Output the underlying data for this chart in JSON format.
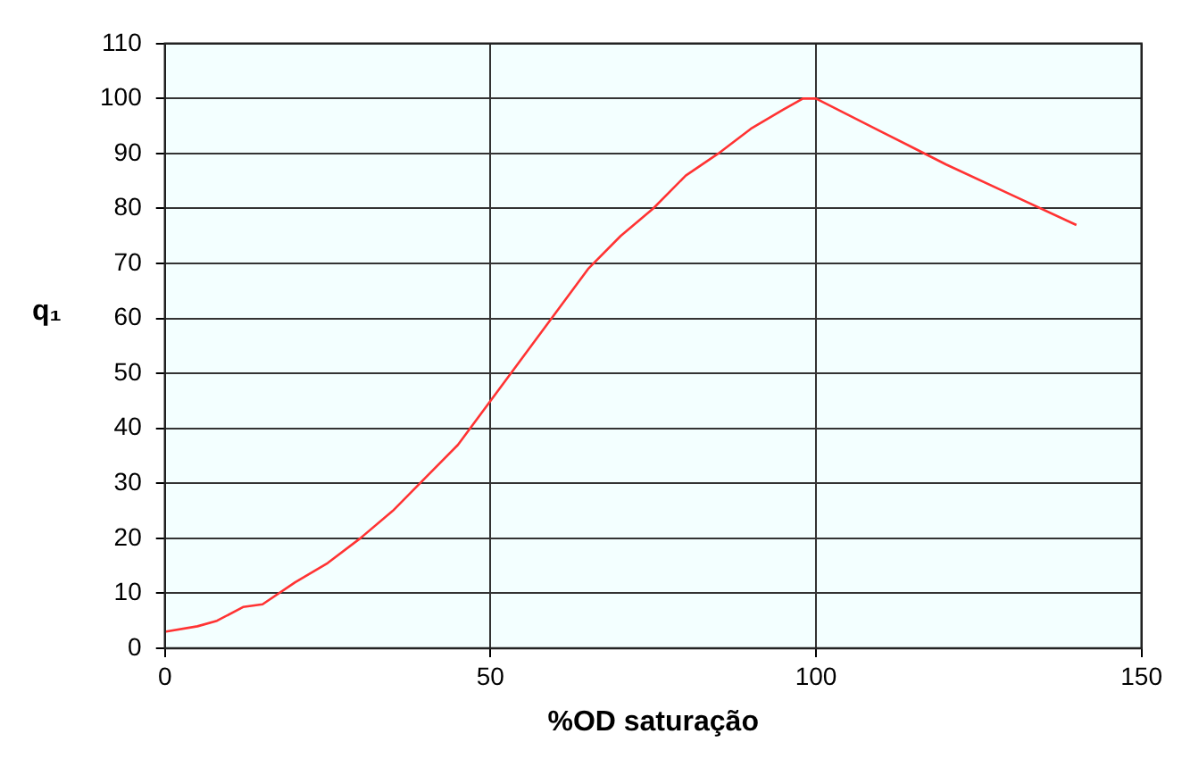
{
  "chart_data": {
    "type": "line",
    "xlabel": "%OD saturação",
    "ylabel": "q₁",
    "x": [
      0,
      5,
      8,
      12,
      15,
      20,
      25,
      30,
      35,
      40,
      45,
      50,
      55,
      60,
      65,
      70,
      75,
      80,
      85,
      90,
      95,
      98,
      100,
      105,
      110,
      115,
      120,
      130,
      140
    ],
    "series": [
      {
        "color": "#ff3333",
        "values": [
          3,
          4,
          5,
          7.5,
          8,
          12,
          15.5,
          20,
          25,
          31,
          37,
          45,
          53,
          61,
          69,
          75,
          80,
          86,
          90,
          94.5,
          98,
          100,
          100,
          97,
          94,
          91,
          88,
          82.5,
          77
        ]
      }
    ],
    "xlim": [
      0,
      150
    ],
    "xticks": [
      0,
      50,
      100,
      150
    ],
    "ylim": [
      0,
      110
    ],
    "yticks": [
      0,
      10,
      20,
      30,
      40,
      50,
      60,
      70,
      80,
      90,
      100,
      110
    ],
    "grid": true,
    "legend": false,
    "marker": "none",
    "line_style": "solid"
  }
}
